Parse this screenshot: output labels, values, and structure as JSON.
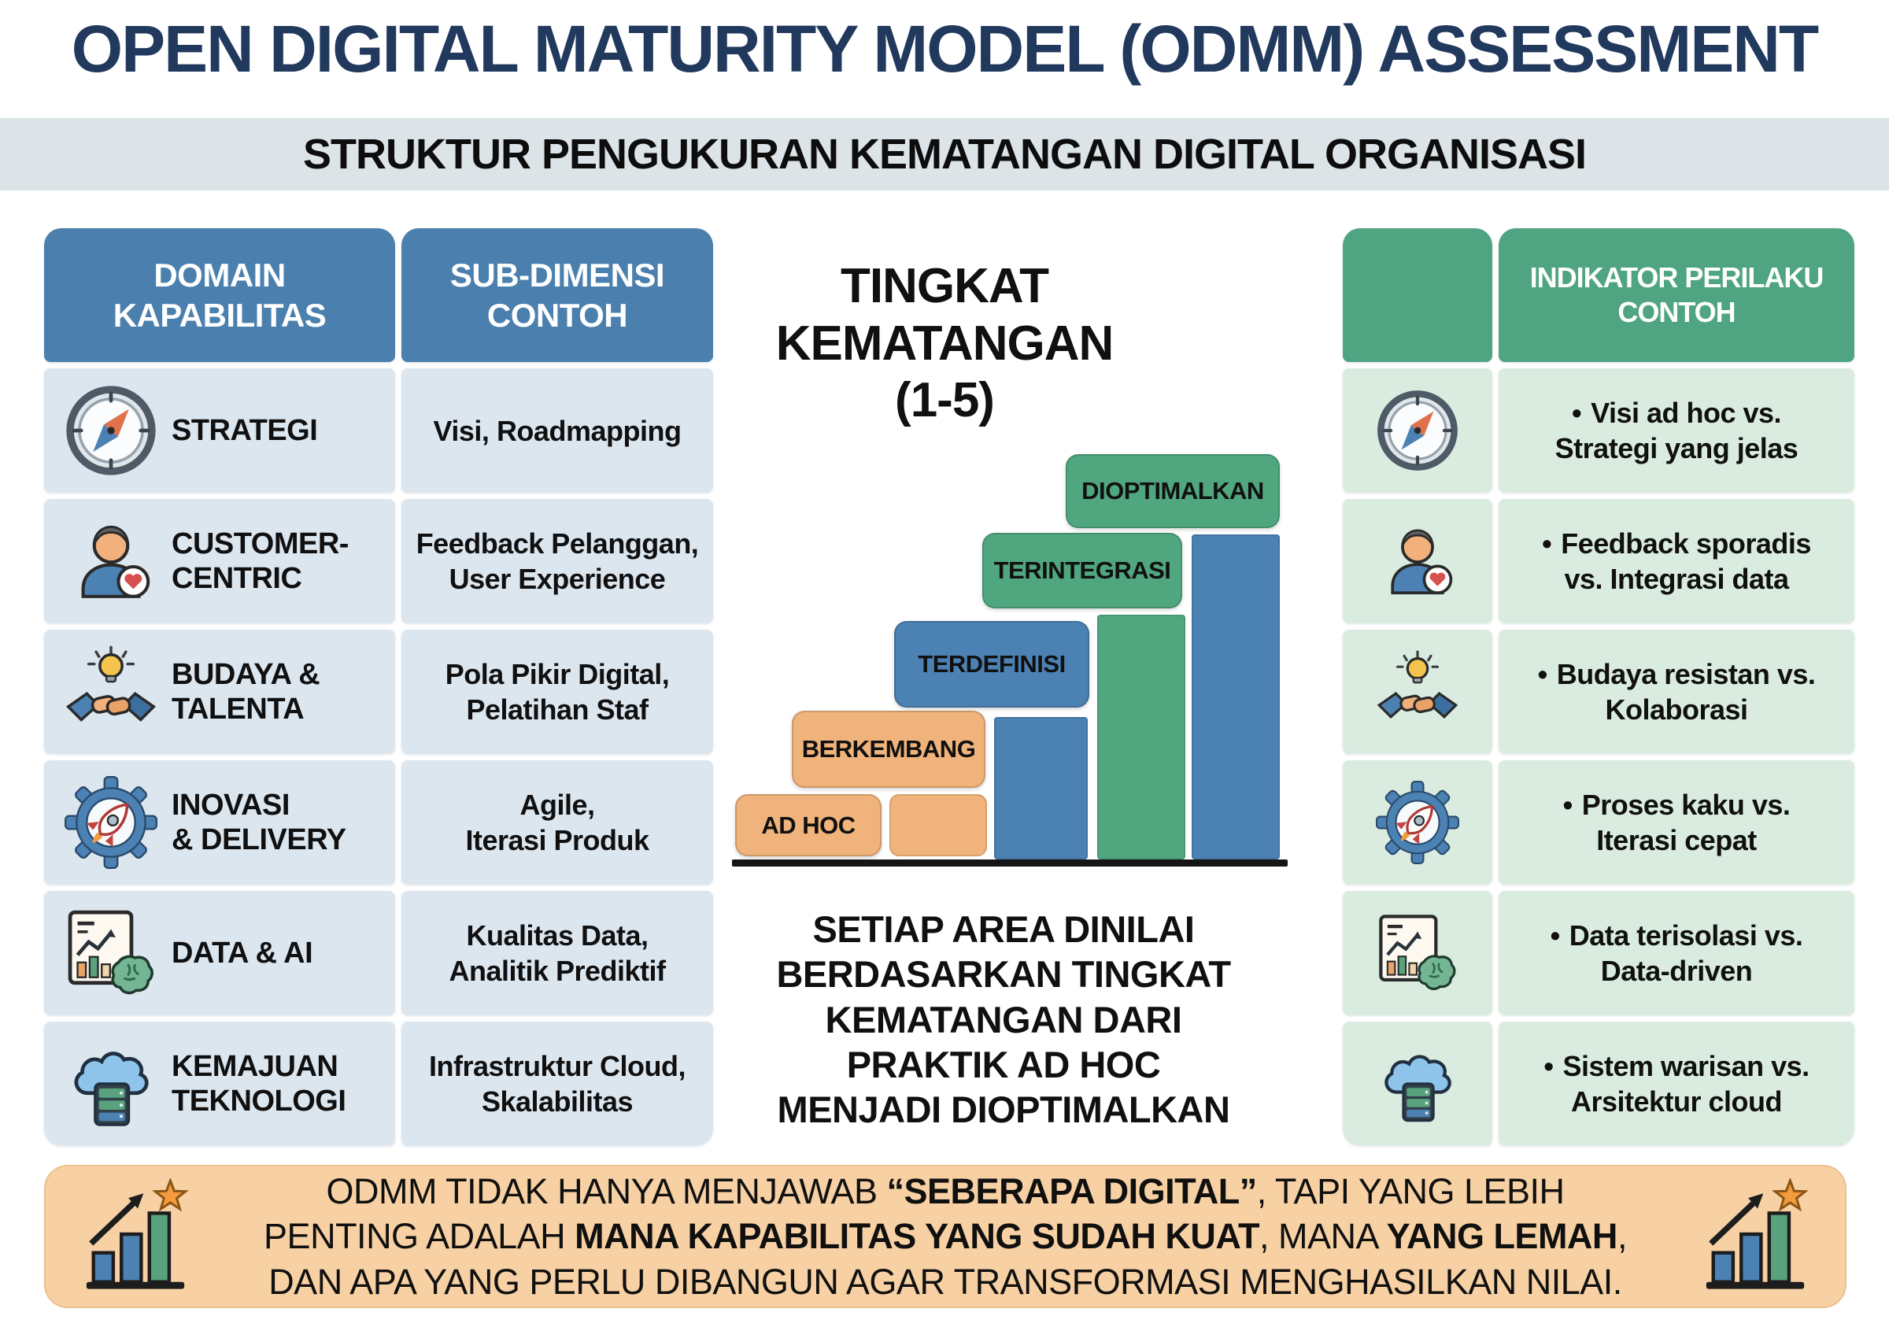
{
  "title": "OPEN DIGITAL MATURITY MODEL (ODMM) ASSESSMENT",
  "subtitle": "STRUKTUR PENGUKURAN KEMATANGAN DIGITAL ORGANISASI",
  "left_table": {
    "header_domain_lines": [
      "DOMAIN",
      "KAPABILITAS"
    ],
    "header_sub_lines": [
      "SUB-DIMENSI",
      "CONTOH"
    ],
    "rows": [
      {
        "icon": "compass-icon",
        "domain_lines": [
          "STRATEGI"
        ],
        "sub_lines": [
          "Visi, Roadmapping"
        ]
      },
      {
        "icon": "customer-icon",
        "domain_lines": [
          "CUSTOMER-",
          "CENTRIC"
        ],
        "sub_lines": [
          "Feedback Pelanggan,",
          "User Experience"
        ]
      },
      {
        "icon": "culture-icon",
        "domain_lines": [
          "BUDAYA &",
          "TALENTA"
        ],
        "sub_lines": [
          "Pola Pikir Digital,",
          "Pelatihan Staf"
        ]
      },
      {
        "icon": "innovation-icon",
        "domain_lines": [
          "INOVASI",
          "& DELIVERY"
        ],
        "sub_lines": [
          "Agile,",
          "Iterasi Produk"
        ]
      },
      {
        "icon": "data-ai-icon",
        "domain_lines": [
          "DATA & AI"
        ],
        "sub_lines": [
          "Kualitas Data,",
          "Analitik Prediktif"
        ]
      },
      {
        "icon": "cloud-icon",
        "domain_lines": [
          "KEMAJUAN",
          "TEKNOLOGI"
        ],
        "sub_lines": [
          "Infrastruktur Cloud,",
          "Skalabilitas"
        ]
      }
    ]
  },
  "maturity": {
    "title_lines": [
      "TINGKAT",
      "KEMATANGAN",
      "(1-5)"
    ],
    "levels": [
      "AD HOC",
      "BERKEMBANG",
      "TERDEFINISI",
      "TERINTEGRASI",
      "DIOPTIMALKAN"
    ],
    "caption_lines": [
      "SETIAP AREA DINILAI",
      "BERDASARKAN TINGKAT",
      "KEMATANGAN DARI",
      "PRAKTIK AD HOC",
      "MENJADI DIOPTIMALKAN"
    ]
  },
  "right_table": {
    "header_lines": [
      "INDIKATOR PERILAKU",
      "CONTOH"
    ],
    "bullet": "•",
    "rows": [
      {
        "icon": "compass-icon",
        "lines": [
          "Visi ad hoc vs.",
          "Strategi yang jelas"
        ]
      },
      {
        "icon": "customer-icon",
        "lines": [
          "Feedback sporadis",
          "vs. Integrasi data"
        ]
      },
      {
        "icon": "culture-icon",
        "lines": [
          "Budaya resistan vs.",
          "Kolaborasi"
        ]
      },
      {
        "icon": "innovation-icon",
        "lines": [
          "Proses kaku vs.",
          "Iterasi cepat"
        ]
      },
      {
        "icon": "data-ai-icon",
        "lines": [
          "Data terisolasi vs.",
          "Data-driven"
        ]
      },
      {
        "icon": "cloud-icon",
        "lines": [
          "Sistem warisan vs.",
          "Arsitektur cloud"
        ]
      }
    ]
  },
  "footer": {
    "lines": [
      [
        {
          "text": "ODMM TIDAK HANYA MENJAWAB ",
          "bold": false
        },
        {
          "text": "“SEBERAPA DIGITAL”",
          "bold": true
        },
        {
          "text": ", TAPI YANG LEBIH",
          "bold": false
        }
      ],
      [
        {
          "text": "PENTING ADALAH ",
          "bold": false
        },
        {
          "text": "MANA KAPABILITAS YANG SUDAH KUAT",
          "bold": true
        },
        {
          "text": ", MANA ",
          "bold": false
        },
        {
          "text": "YANG LEMAH",
          "bold": true
        },
        {
          "text": ",",
          "bold": false
        }
      ],
      [
        {
          "text": "DAN APA YANG PERLU DIBANGUN AGAR TRANSFORMASI MENGHASILKAN NILAI.",
          "bold": false
        }
      ]
    ]
  },
  "colors": {
    "title_navy": "#22395e",
    "subtitle_bg": "#dce4e8",
    "table_blue_header": "#4b80ae",
    "table_blue_row": "#dce6ef",
    "table_green_header": "#4fa481",
    "table_green_row": "#d9ecdf",
    "level_orange": "#f0b37b",
    "level_blue": "#4c82b3",
    "level_green": "#50a77f",
    "footer_bg": "#f7d1a3"
  }
}
